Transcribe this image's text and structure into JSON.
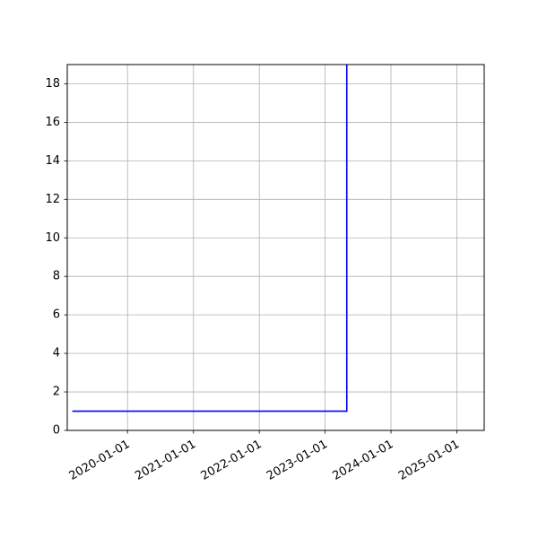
{
  "chart_data": {
    "type": "line",
    "drawstyle": "steps-post",
    "x": [
      "2019-03-01",
      "2022-03-01",
      "2023-05-01",
      "2023-05-01"
    ],
    "series": [
      {
        "values": [
          1,
          1,
          2,
          19
        ],
        "color": "#0000ff"
      }
    ],
    "xlim": [
      "2019-02-01",
      "2025-06-01"
    ],
    "ylim": [
      0,
      19
    ],
    "x_tick_labels": [
      "2020-01-01",
      "2021-01-01",
      "2022-01-01",
      "2023-01-01",
      "2024-01-01",
      "2025-01-01"
    ],
    "y_ticks": [
      0,
      2,
      4,
      6,
      8,
      10,
      12,
      14,
      16,
      18
    ],
    "y_tick_labels": [
      "0",
      "2",
      "4",
      "6",
      "8",
      "10",
      "12",
      "14",
      "16",
      "18"
    ],
    "grid": true,
    "grid_color": "#b0b0b0",
    "title": "",
    "xlabel": "",
    "ylabel": ""
  }
}
